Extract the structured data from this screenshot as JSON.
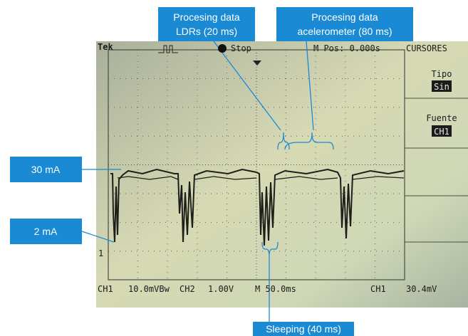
{
  "callouts": {
    "ldr": [
      "Procesing data",
      "LDRs (20 ms)"
    ],
    "accelerometer": [
      "Procesing data",
      "acelerometer (80 ms)"
    ],
    "high_current": "30 mA",
    "low_current": "2 mA",
    "sleeping": "Sleeping (40 ms)"
  },
  "scope": {
    "top": {
      "brand": "Tek",
      "state": "Stop",
      "position": "M Pos: 0.000s",
      "menu_title": "CURSORES"
    },
    "menu": {
      "type_label": "Tipo",
      "type_value": "Sin",
      "source_label": "Fuente",
      "source_value": "CH1"
    },
    "channel_marker": "1",
    "bottom": {
      "ch1": "CH1",
      "ch1_scale": "10.0mVBw",
      "ch2": "CH2",
      "ch2_scale": "1.00V",
      "timebase": "M 50.0ms",
      "trigger_channel": "CH1",
      "trigger_level": "30.4mV"
    }
  }
}
